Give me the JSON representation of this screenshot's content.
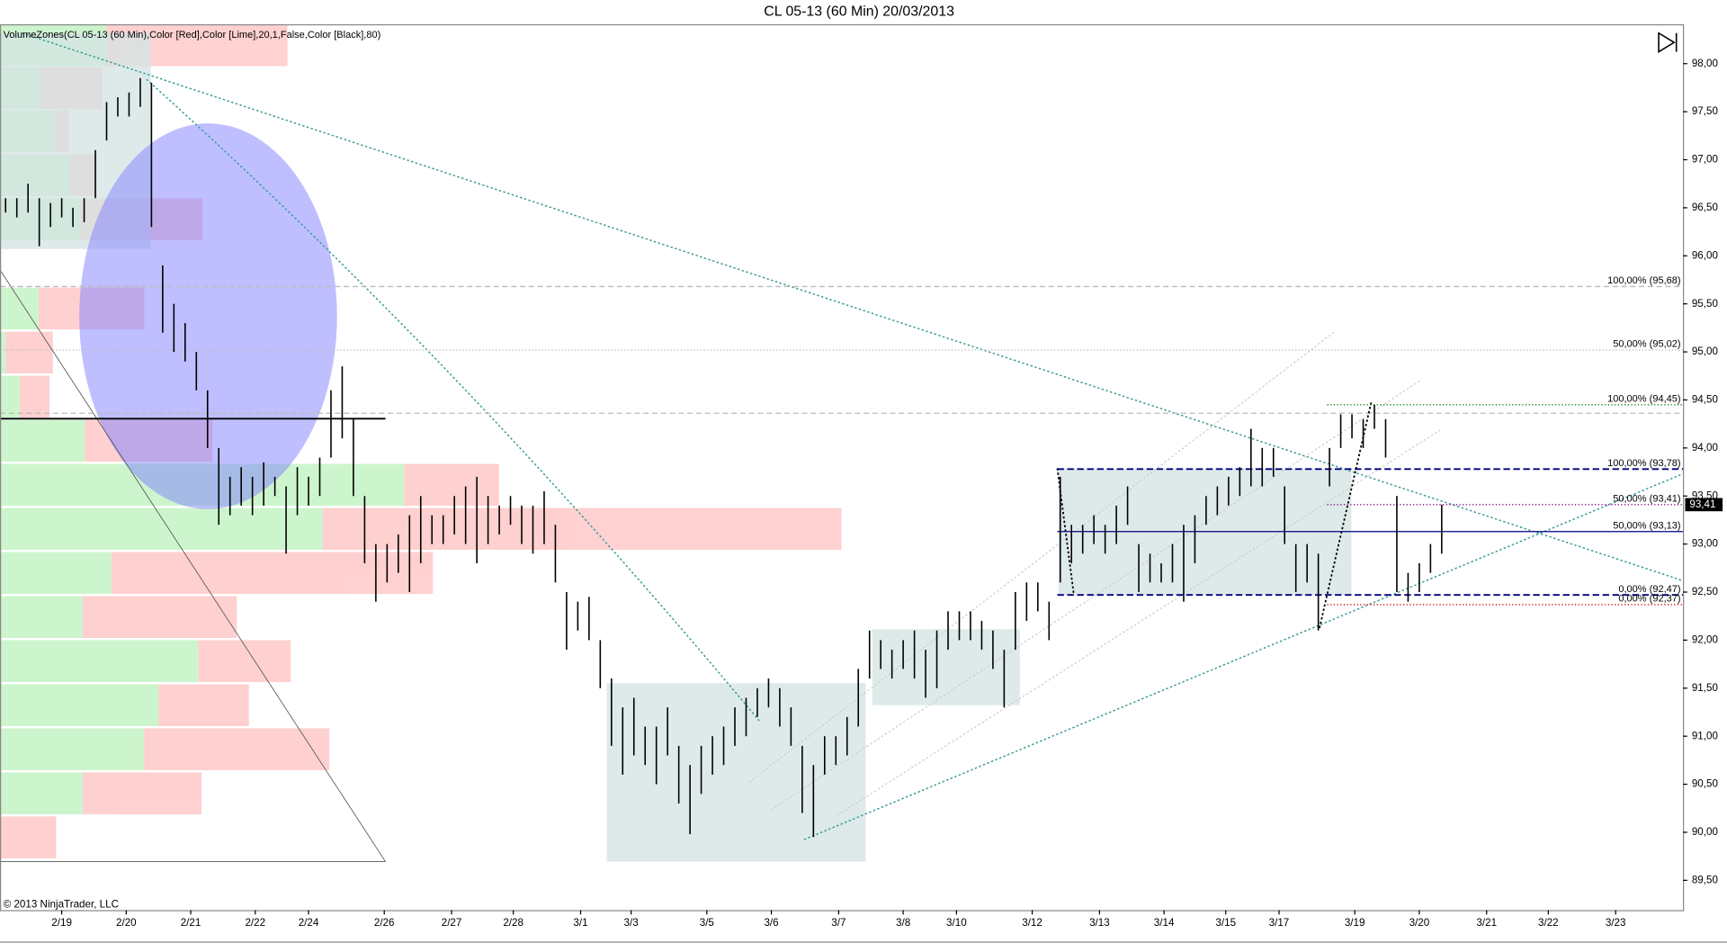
{
  "chart_data": {
    "type": "hilo",
    "title": "CL 05-13 (60 Min)  20/03/2013",
    "indicator_label": "VolumeZones(CL 05-13 (60 Min),Color [Red],Color [Lime],20,1,False,Color [Black],80)",
    "copyright": "© 2013 NinjaTrader, LLC",
    "color": "#000000",
    "xlim": [
      0,
      600
    ],
    "ylim": [
      89.19,
      98.41
    ],
    "yticks": [
      {
        "value": 98,
        "label": "98,00"
      },
      {
        "value": 97.5,
        "label": "97,50"
      },
      {
        "value": 97,
        "label": "97,00"
      },
      {
        "value": 96.5,
        "label": "96,50"
      },
      {
        "value": 96,
        "label": "96,00"
      },
      {
        "value": 95.5,
        "label": "95,50"
      },
      {
        "value": 95,
        "label": "95,00"
      },
      {
        "value": 94.5,
        "label": "94,50"
      },
      {
        "value": 94,
        "label": "94,00"
      },
      {
        "value": 93.5,
        "label": "93,50"
      },
      {
        "value": 93,
        "label": "93,00"
      },
      {
        "value": 92.5,
        "label": "92,50"
      },
      {
        "value": 92,
        "label": "92,00"
      },
      {
        "value": 91.5,
        "label": "91,50"
      },
      {
        "value": 91,
        "label": "91,00"
      },
      {
        "value": 90.5,
        "label": "90,50"
      },
      {
        "value": 90,
        "label": "90,00"
      },
      {
        "value": 89.5,
        "label": "89,50"
      }
    ],
    "xticks": [
      {
        "value": 22,
        "label": "2/19"
      },
      {
        "value": 45,
        "label": "2/20"
      },
      {
        "value": 68,
        "label": "2/21"
      },
      {
        "value": 91,
        "label": "2/22"
      },
      {
        "value": 110,
        "label": "2/24"
      },
      {
        "value": 137,
        "label": "2/26"
      },
      {
        "value": 161,
        "label": "2/27"
      },
      {
        "value": 183,
        "label": "2/28"
      },
      {
        "value": 207,
        "label": "3/1"
      },
      {
        "value": 225,
        "label": "3/3"
      },
      {
        "value": 252,
        "label": "3/5"
      },
      {
        "value": 275,
        "label": "3/6"
      },
      {
        "value": 299,
        "label": "3/7"
      },
      {
        "value": 322,
        "label": "3/8"
      },
      {
        "value": 341,
        "label": "3/10"
      },
      {
        "value": 368,
        "label": "3/12"
      },
      {
        "value": 392,
        "label": "3/13"
      },
      {
        "value": 415,
        "label": "3/14"
      },
      {
        "value": 437,
        "label": "3/15"
      },
      {
        "value": 456,
        "label": "3/17"
      },
      {
        "value": 483,
        "label": "3/19"
      },
      {
        "value": 506,
        "label": "3/20"
      },
      {
        "value": 530,
        "label": "3/21"
      },
      {
        "value": 552,
        "label": "3/22"
      },
      {
        "value": 576,
        "label": "3/23"
      }
    ],
    "x": [
      2,
      6,
      10,
      14,
      18,
      22,
      26,
      30,
      34,
      38,
      42,
      46,
      50,
      54,
      58,
      62,
      66,
      70,
      74,
      78,
      82,
      86,
      90,
      94,
      98,
      102,
      106,
      110,
      114,
      118,
      122,
      126,
      130,
      134,
      138,
      142,
      146,
      150,
      154,
      158,
      162,
      166,
      170,
      174,
      178,
      182,
      186,
      190,
      194,
      198,
      202,
      206,
      210,
      214,
      218,
      222,
      226,
      230,
      234,
      238,
      242,
      246,
      250,
      254,
      258,
      262,
      266,
      270,
      274,
      278,
      282,
      286,
      290,
      294,
      298,
      302,
      306,
      310,
      314,
      318,
      322,
      326,
      330,
      334,
      338,
      342,
      346,
      350,
      354,
      358,
      362,
      366,
      370,
      374,
      378,
      382,
      386,
      390,
      394,
      398,
      402,
      406,
      410,
      414,
      418,
      422,
      426,
      430,
      434,
      438,
      442,
      446,
      450,
      454,
      458,
      462,
      466,
      470,
      474,
      478,
      482,
      486,
      490,
      494,
      498,
      502,
      506,
      510,
      514
    ],
    "high": [
      96.6,
      96.6,
      96.75,
      96.6,
      96.55,
      96.6,
      96.5,
      96.6,
      97.1,
      97.6,
      97.65,
      97.7,
      97.85,
      97.8,
      95.9,
      95.5,
      95.3,
      95.0,
      94.6,
      94.0,
      93.7,
      93.8,
      93.7,
      93.85,
      93.7,
      93.6,
      93.8,
      93.7,
      93.9,
      94.6,
      94.85,
      94.3,
      93.5,
      93.0,
      93.0,
      93.1,
      93.3,
      93.5,
      93.3,
      93.3,
      93.5,
      93.6,
      93.7,
      93.5,
      93.4,
      93.5,
      93.4,
      93.4,
      93.55,
      93.2,
      92.5,
      92.4,
      92.45,
      92.0,
      91.6,
      91.3,
      91.4,
      91.1,
      91.1,
      91.3,
      90.9,
      90.7,
      90.9,
      91.0,
      91.1,
      91.3,
      91.4,
      91.5,
      91.6,
      91.5,
      91.3,
      90.9,
      90.7,
      91.0,
      91.0,
      91.2,
      91.7,
      92.1,
      92.0,
      91.9,
      92.0,
      92.1,
      91.9,
      92.1,
      92.3,
      92.3,
      92.3,
      92.2,
      92.1,
      91.9,
      92.5,
      92.6,
      92.6,
      92.4,
      93.7,
      93.2,
      93.2,
      93.3,
      93.2,
      93.4,
      93.6,
      93.0,
      92.9,
      92.8,
      93.0,
      93.2,
      93.3,
      93.5,
      93.6,
      93.7,
      93.8,
      94.2,
      94.0,
      94.0,
      93.6,
      93.0,
      93.0,
      92.9,
      94.0,
      94.35,
      94.35,
      94.3,
      94.45,
      94.3,
      93.5,
      92.7,
      92.8,
      93.0,
      93.41
    ],
    "low": [
      96.45,
      96.4,
      96.45,
      96.1,
      96.3,
      96.4,
      96.3,
      96.35,
      96.6,
      97.2,
      97.45,
      97.45,
      97.55,
      96.3,
      95.2,
      95.0,
      94.9,
      94.6,
      94.0,
      93.2,
      93.3,
      93.4,
      93.3,
      93.4,
      93.5,
      92.9,
      93.3,
      93.4,
      93.5,
      93.9,
      94.1,
      93.5,
      92.8,
      92.4,
      92.6,
      92.7,
      92.5,
      92.8,
      93.0,
      93.0,
      93.1,
      93.0,
      92.8,
      93.0,
      93.1,
      93.2,
      93.0,
      92.9,
      93.0,
      92.6,
      91.9,
      92.1,
      92.0,
      91.5,
      90.9,
      90.6,
      90.8,
      90.7,
      90.5,
      90.8,
      90.3,
      89.98,
      90.4,
      90.6,
      90.7,
      90.9,
      91.0,
      91.2,
      91.3,
      91.1,
      90.9,
      90.2,
      89.95,
      90.6,
      90.7,
      90.8,
      91.1,
      91.6,
      91.7,
      91.6,
      91.7,
      91.6,
      91.4,
      91.5,
      91.9,
      92.0,
      92.0,
      91.9,
      91.7,
      91.3,
      91.9,
      92.2,
      92.3,
      92.0,
      92.6,
      92.8,
      92.9,
      93.0,
      92.9,
      93.0,
      93.2,
      92.5,
      92.6,
      92.6,
      92.6,
      92.4,
      92.8,
      93.2,
      93.3,
      93.4,
      93.5,
      93.6,
      93.6,
      93.7,
      93.0,
      92.5,
      92.6,
      92.1,
      93.6,
      94.0,
      94.1,
      94.0,
      94.2,
      93.9,
      92.5,
      92.4,
      92.5,
      92.7,
      92.9
    ],
    "last_price": {
      "value": 93.41,
      "label": "93,41"
    },
    "levels": [
      {
        "value": 95.68,
        "label": "100,00% (95,68)",
        "color": "#bbbbbb"
      },
      {
        "value": 95.02,
        "label": "50,00% (95,02)",
        "color": "#bbbbbb"
      },
      {
        "value": 94.45,
        "label": "100,00% (94,45)",
        "color": "#008000"
      },
      {
        "value": 93.78,
        "label": "100,00% (93,78)",
        "color": "#000080"
      },
      {
        "value": 93.41,
        "label": "50,00% (93,41)",
        "color": "#800080"
      },
      {
        "value": 93.13,
        "label": "50,00% (93,13)",
        "color": "#000080"
      },
      {
        "value": 92.47,
        "label": "0,00% (92,47)",
        "color": "#000080"
      },
      {
        "value": 92.37,
        "label": "0,00% (92,37)",
        "color": "#cc0000"
      }
    ]
  }
}
